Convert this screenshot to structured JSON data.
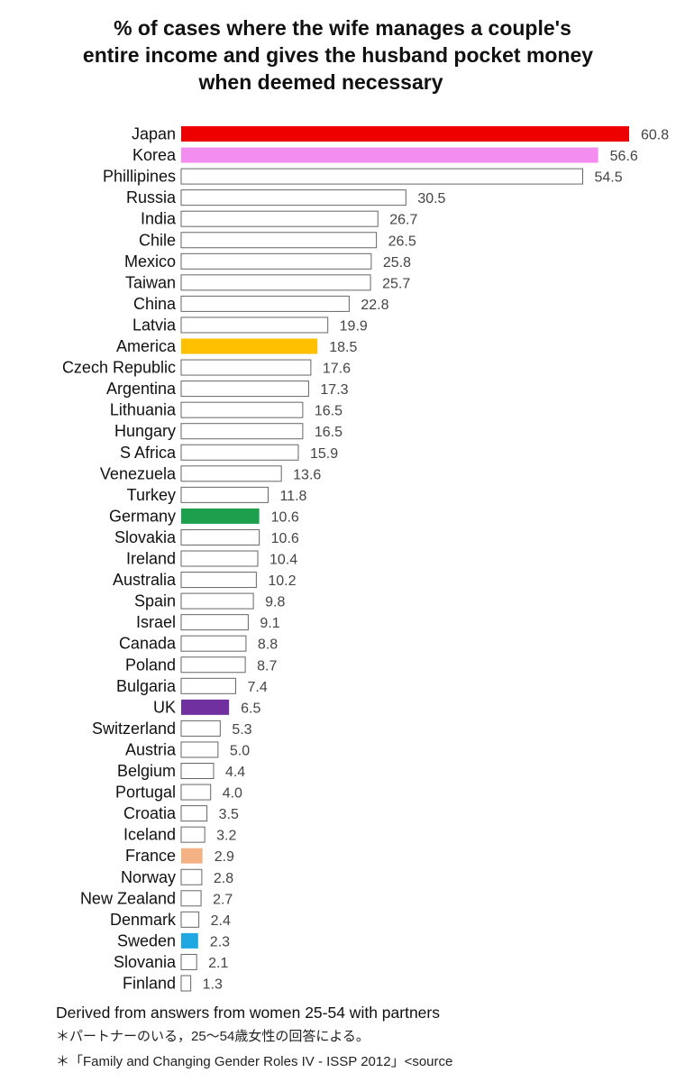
{
  "title_lines": [
    "% of cases where the wife manages a couple's",
    "entire income and gives the husband pocket money",
    "when deemed necessary"
  ],
  "footnotes": {
    "derived": "Derived from answers from women 25-54 with partners",
    "japanese": "＊パートナーのいる，25～54歳女性の回答による。",
    "source": "＊「Family and Changing Gender Roles IV - ISSP 2012」<source"
  },
  "colors": {
    "default_fill": "#ffffff",
    "default_stroke": "#666666",
    "Japan": "#ee0000",
    "Korea": "#f38ef0",
    "America": "#ffc000",
    "Germany": "#1da04e",
    "UK": "#7030a0",
    "France": "#f4b183",
    "Sweden": "#1ea7e1"
  },
  "chart_data": {
    "type": "bar",
    "orientation": "horizontal",
    "categories": [
      "Japan",
      "Korea",
      "Phillipines",
      "Russia",
      "India",
      "Chile",
      "Mexico",
      "Taiwan",
      "China",
      "Latvia",
      "America",
      "Czech Republic",
      "Argentina",
      "Lithuania",
      "Hungary",
      "S Africa",
      "Venezuela",
      "Turkey",
      "Germany",
      "Slovakia",
      "Ireland",
      "Australia",
      "Spain",
      "Israel",
      "Canada",
      "Poland",
      "Bulgaria",
      "UK",
      "Switzerland",
      "Austria",
      "Belgium",
      "Portugal",
      "Croatia",
      "Iceland",
      "France",
      "Norway",
      "New Zealand",
      "Denmark",
      "Sweden",
      "Slovania",
      "Finland"
    ],
    "values": [
      60.8,
      56.6,
      54.5,
      30.5,
      26.7,
      26.5,
      25.8,
      25.7,
      22.8,
      19.9,
      18.5,
      17.6,
      17.3,
      16.5,
      16.5,
      15.9,
      13.6,
      11.8,
      10.6,
      10.6,
      10.4,
      10.2,
      9.8,
      9.1,
      8.8,
      8.7,
      7.4,
      6.5,
      5.3,
      5.0,
      4.4,
      4.0,
      3.5,
      3.2,
      2.9,
      2.8,
      2.7,
      2.4,
      2.3,
      2.1,
      1.3
    ],
    "value_labels": [
      "60.8",
      "56.6",
      "54.5",
      "30.5",
      "26.7",
      "26.5",
      "25.8",
      "25.7",
      "22.8",
      "19.9",
      "18.5",
      "17.6",
      "17.3",
      "16.5",
      "16.5",
      "15.9",
      "13.6",
      "11.8",
      "10.6",
      "10.6",
      "10.4",
      "10.2",
      "9.8",
      "9.1",
      "8.8",
      "8.7",
      "7.4",
      "6.5",
      "5.3",
      "5.0",
      "4.4",
      "4.0",
      "3.5",
      "3.2",
      "2.9",
      "2.8",
      "2.7",
      "2.4",
      "2.3",
      "2.1",
      "1.3"
    ],
    "title": "% of cases where the wife manages a couple's entire income and gives the husband pocket money when deemed necessary",
    "xlabel": "",
    "ylabel": "",
    "xlim": [
      0,
      60.8
    ],
    "grid": false,
    "legend": "none"
  }
}
